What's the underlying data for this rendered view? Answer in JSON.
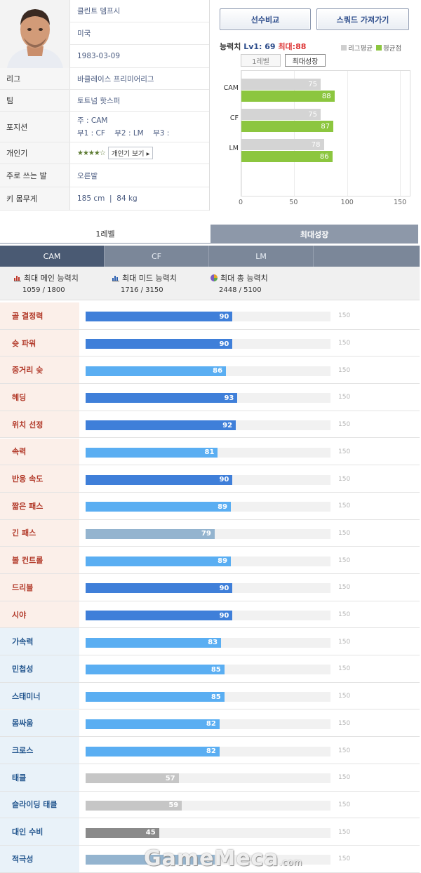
{
  "profile": {
    "name": "클린트 뎀프시",
    "nation": "미국",
    "birth": "1983-03-09",
    "rows": [
      {
        "label": "리그",
        "value": "바클레이스 프리미어리그"
      },
      {
        "label": "팀",
        "value": "토트넘 핫스퍼"
      },
      {
        "label": "포지션",
        "value": "주 : CAM",
        "value2": "부1 : CF    부2 : LM    부3 :"
      },
      {
        "label": "개인기",
        "stars": "★★★★☆",
        "button": "개인기 보기 ▸"
      },
      {
        "label": "주로 쓰는 발",
        "value": "오른발"
      },
      {
        "label": "키 몸무게",
        "value": "185 cm  |  84 kg"
      }
    ]
  },
  "buttons": {
    "compare": "선수비교",
    "squad": "스쿼드 가져가기"
  },
  "ability": {
    "label": "능력치",
    "lv": "Lv1: 69",
    "max": "최대:88",
    "legend_league": "리그평균",
    "legend_avg": "평균점",
    "tab_lv1": "1레벨",
    "tab_max": "최대성장"
  },
  "mini_chart": {
    "type": "bar",
    "categories": [
      "CAM",
      "CF",
      "LM"
    ],
    "series": [
      {
        "name": "리그평균",
        "values": [
          75,
          75,
          78
        ],
        "color": "#d4d4d4"
      },
      {
        "name": "평균점",
        "values": [
          88,
          87,
          86
        ],
        "color": "#8cc63f"
      }
    ],
    "xlim": [
      0,
      150
    ],
    "ticks": [
      "0",
      "50",
      "100",
      "150"
    ]
  },
  "tabs": {
    "lv1": "1레벨",
    "max": "최대성장"
  },
  "positions": [
    "CAM",
    "CF",
    "LM",
    ""
  ],
  "summary": [
    {
      "label": "최대 메인 능력치",
      "value": "1059 / 1800",
      "icon": "bar-chart-red-icon"
    },
    {
      "label": "최대 미드 능력치",
      "value": "1716 / 3150",
      "icon": "bar-chart-blue-icon"
    },
    {
      "label": "최대 총 능력치",
      "value": "2448 / 5100",
      "icon": "pie-chart-icon"
    }
  ],
  "stats": [
    {
      "label": "골 결정력",
      "value": 90,
      "group": "attack",
      "color": "#3f7fd9"
    },
    {
      "label": "슛 파워",
      "value": 90,
      "group": "attack",
      "color": "#3f7fd9"
    },
    {
      "label": "중거리 슛",
      "value": 86,
      "group": "attack",
      "color": "#5aaef2"
    },
    {
      "label": "헤딩",
      "value": 93,
      "group": "attack",
      "color": "#3f7fd9"
    },
    {
      "label": "위치 선정",
      "value": 92,
      "group": "attack",
      "color": "#3f7fd9"
    },
    {
      "label": "속력",
      "value": 81,
      "group": "attack",
      "color": "#5aaef2"
    },
    {
      "label": "반응 속도",
      "value": 90,
      "group": "attack",
      "color": "#3f7fd9"
    },
    {
      "label": "짧은 패스",
      "value": 89,
      "group": "attack",
      "color": "#5aaef2"
    },
    {
      "label": "긴 패스",
      "value": 79,
      "group": "attack",
      "color": "#94b4cf"
    },
    {
      "label": "볼 컨트롤",
      "value": 89,
      "group": "attack",
      "color": "#5aaef2"
    },
    {
      "label": "드리블",
      "value": 90,
      "group": "attack",
      "color": "#3f7fd9"
    },
    {
      "label": "시야",
      "value": 90,
      "group": "attack",
      "color": "#3f7fd9"
    },
    {
      "label": "가속력",
      "value": 83,
      "group": "mid",
      "color": "#5aaef2"
    },
    {
      "label": "민첩성",
      "value": 85,
      "group": "mid",
      "color": "#5aaef2"
    },
    {
      "label": "스태미너",
      "value": 85,
      "group": "mid",
      "color": "#5aaef2"
    },
    {
      "label": "몸싸움",
      "value": 82,
      "group": "mid",
      "color": "#5aaef2"
    },
    {
      "label": "크로스",
      "value": 82,
      "group": "mid",
      "color": "#5aaef2"
    },
    {
      "label": "태클",
      "value": 57,
      "group": "mid",
      "color": "#c6c6c6"
    },
    {
      "label": "슬라이딩 태클",
      "value": 59,
      "group": "mid",
      "color": "#c6c6c6"
    },
    {
      "label": "대인 수비",
      "value": 45,
      "group": "mid",
      "color": "#8a8a8a"
    },
    {
      "label": "적극성",
      "value": 79,
      "group": "mid",
      "color": "#94b4cf"
    }
  ],
  "stat_max": 150,
  "stat_max_label": "150",
  "watermark": {
    "main": "GameMeca",
    "suffix": ".com"
  }
}
